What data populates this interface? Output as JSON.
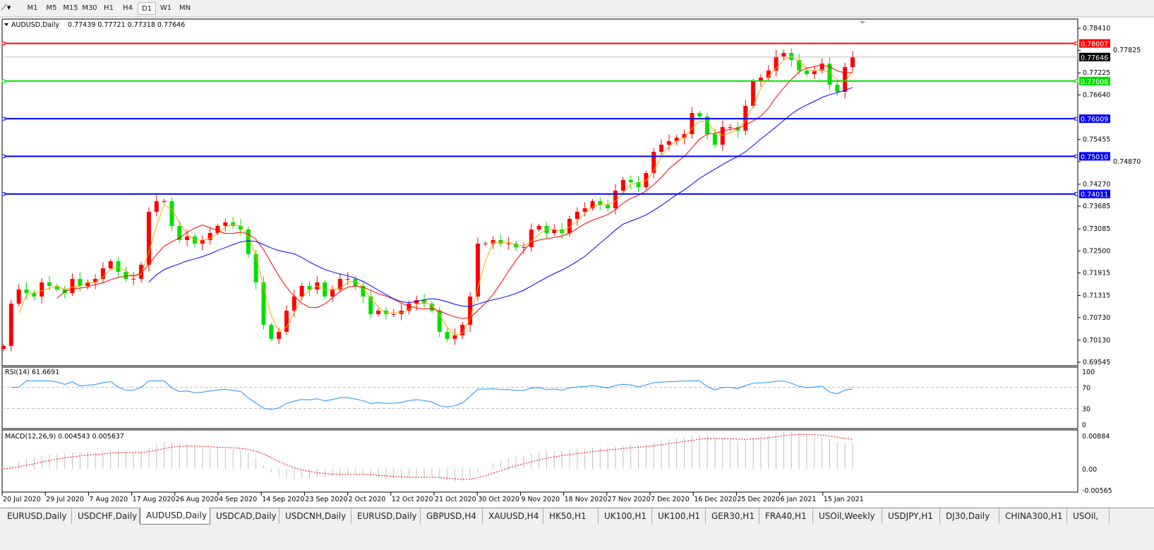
{
  "toolbar": {
    "timeframes": [
      "M1",
      "M5",
      "M15",
      "M30",
      "H1",
      "H4",
      "D1",
      "W1",
      "MN"
    ],
    "active": "D1"
  },
  "chart_header": {
    "symbol": "AUDUSD,Daily",
    "ohlc": "0.77439 0.77721 0.77318 0.77646"
  },
  "rsi": {
    "label": "RSI(14) 61.6691",
    "levels": [
      "100",
      "70",
      "30",
      "0"
    ]
  },
  "macd": {
    "label": "MACD(12,26,9) 0.004543 0.005637",
    "ticks": [
      "0.00884",
      "0.00",
      "-0.00565"
    ]
  },
  "colors": {
    "bull": "#ff0000",
    "bear": "#00e000",
    "ma_fast": "#ffa500",
    "ma_mid": "#ff0000",
    "ma_slow": "#0000ff",
    "rsi": "#1e90ff",
    "macd_signal": "#ff0000",
    "macd_hist": "#c0c0c0"
  },
  "chart_data": {
    "type": "candlestick",
    "price_ticks": [
      "0.78410",
      "0.77825",
      "0.77225",
      "0.76640",
      "0.75455",
      "0.74870",
      "0.74270",
      "0.73685",
      "0.73085",
      "0.72500",
      "0.71915",
      "0.71315",
      "0.70730",
      "0.70130",
      "0.69545"
    ],
    "ylim": [
      0.69545,
      0.7841
    ],
    "current_price": "0.77646",
    "hlines": [
      {
        "value": "0.78007",
        "color": "#ff0000"
      },
      {
        "value": "0.77008",
        "color": "#00e000"
      },
      {
        "value": "0.76009",
        "color": "#0000ff"
      },
      {
        "value": "0.75010",
        "color": "#0000ff"
      },
      {
        "value": "0.74011",
        "color": "#0000ff"
      }
    ],
    "date_ticks": [
      "20 Jul 2020",
      "29 Jul 2020",
      "7 Aug 2020",
      "17 Aug 2020",
      "26 Aug 2020",
      "4 Sep 2020",
      "14 Sep 2020",
      "23 Sep 2020",
      "2 Oct 2020",
      "12 Oct 2020",
      "21 Oct 2020",
      "30 Oct 2020",
      "9 Nov 2020",
      "18 Nov 2020",
      "27 Nov 2020",
      "7 Dec 2020",
      "16 Dec 2020",
      "25 Dec 2020",
      "6 Jan 2021",
      "15 Jan 2021"
    ],
    "closes": [
      0.69977,
      0.71101,
      0.71476,
      0.71382,
      0.71289,
      0.71664,
      0.7157,
      0.71476,
      0.71382,
      0.71757,
      0.7157,
      0.71664,
      0.71757,
      0.72038,
      0.72226,
      0.71945,
      0.71757,
      0.71757,
      0.72132,
      0.73538,
      0.73819,
      0.73819,
      0.73163,
      0.72788,
      0.72882,
      0.72694,
      0.72788,
      0.72975,
      0.73163,
      0.73256,
      0.73163,
      0.73069,
      0.72413,
      0.71664,
      0.70539,
      0.70164,
      0.70352,
      0.70914,
      0.71289,
      0.7157,
      0.71476,
      0.71664,
      0.71289,
      0.71476,
      0.71757,
      0.71757,
      0.7157,
      0.71289,
      0.7082,
      0.70914,
      0.7082,
      0.7082,
      0.70914,
      0.71101,
      0.71195,
      0.71101,
      0.70914,
      0.70352,
      0.70164,
      0.70258,
      0.70539,
      0.71289,
      0.72694,
      0.72694,
      0.72788,
      0.72694,
      0.72694,
      0.72601,
      0.72601,
      0.73069,
      0.73163,
      0.72975,
      0.73069,
      0.72975,
      0.7335,
      0.73538,
      0.73631,
      0.73819,
      0.73725,
      0.73631,
      0.741,
      0.74381,
      0.74325,
      0.74193,
      0.74568,
      0.7513,
      0.75318,
      0.75412,
      0.75505,
      0.75599,
      0.76161,
      0.76067,
      0.75599,
      0.75318,
      0.75786,
      0.75786,
      0.75693,
      0.76349,
      0.77004,
      0.77098,
      0.77286,
      0.7766,
      0.77754,
      0.77567,
      0.77286,
      0.77192,
      0.77286,
      0.77473,
      0.76911,
      0.76723,
      0.77379,
      0.77646
    ]
  },
  "tabs": [
    "EURUSD,Daily",
    "USDCHF,Daily",
    "AUDUSD,Daily",
    "USDCAD,Daily",
    "USDCNH,Daily",
    "EURUSD,Daily",
    "GBPUSD,H4",
    "XAUUSD,H4",
    "HK50,H1",
    "UK100,H1",
    "UK100,H1",
    "GER30,H1",
    "FRA40,H1",
    "USOil,Weekly",
    "USDJPY,H1",
    "DJ30,Daily",
    "CHINA300,H1",
    "USOil,"
  ],
  "active_tab": "AUDUSD,Daily"
}
